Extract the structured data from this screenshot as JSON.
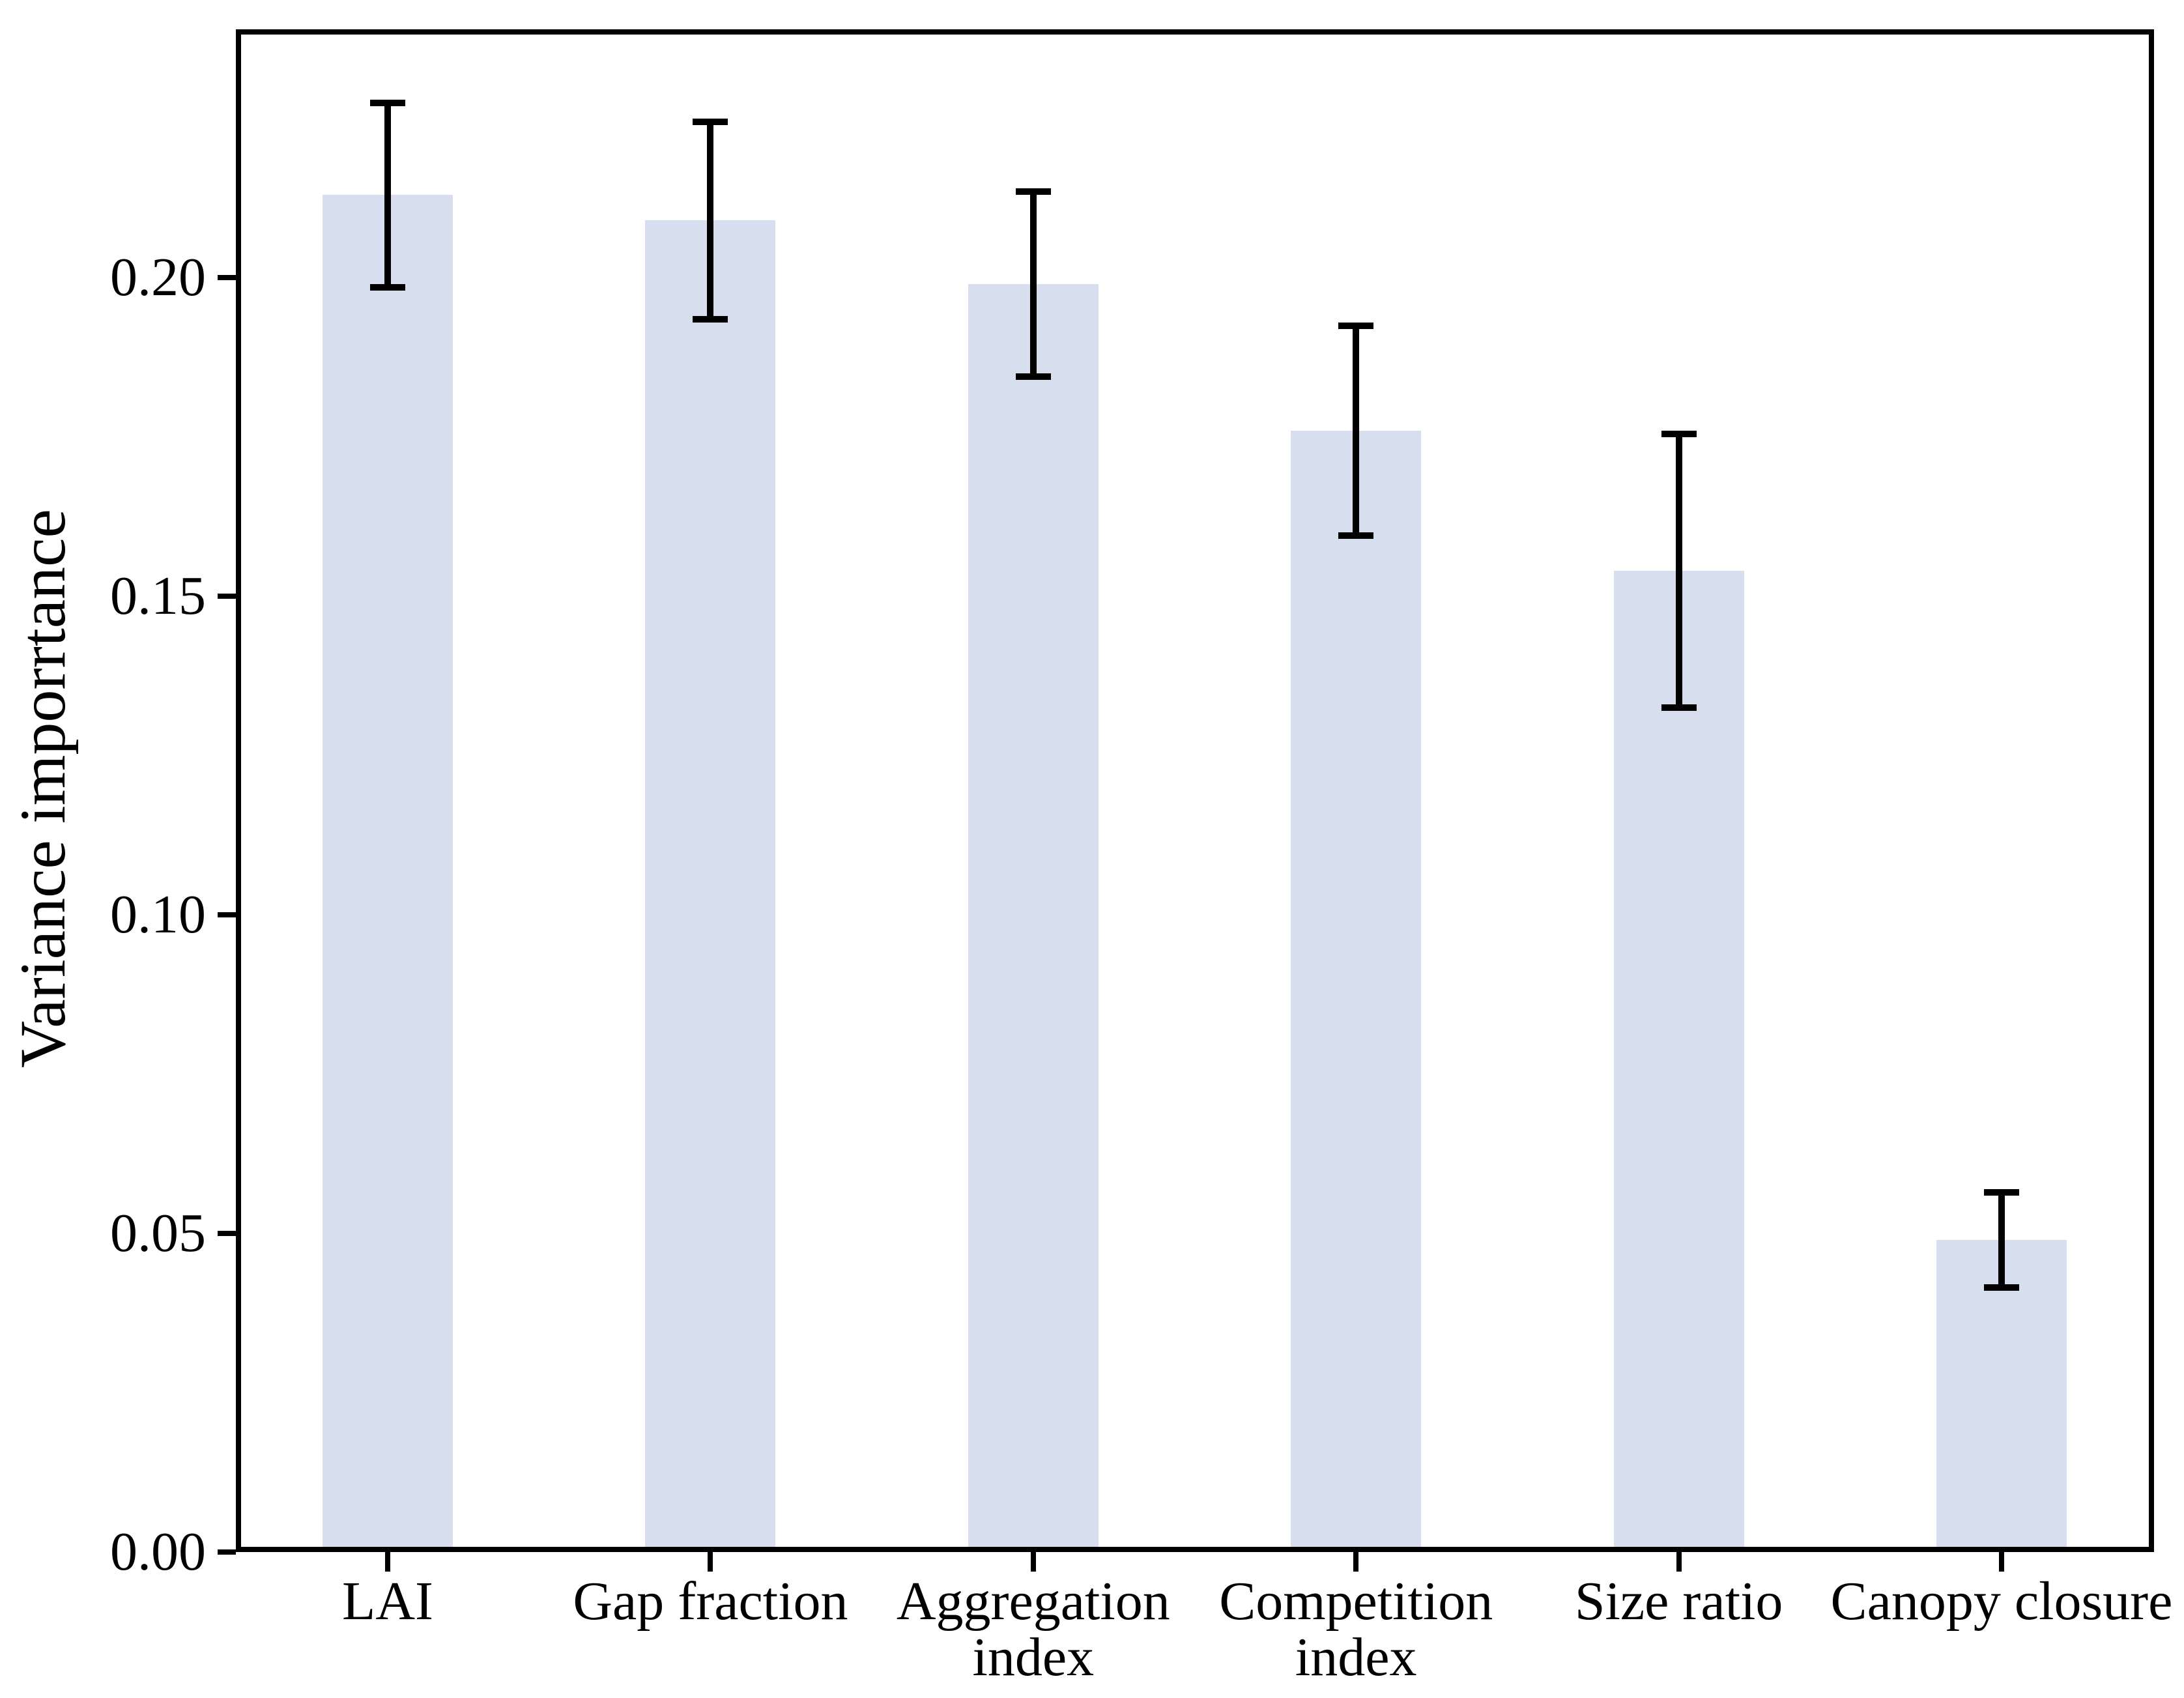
{
  "chart_data": {
    "type": "bar",
    "title": "",
    "xlabel": "",
    "ylabel": "Variance imporrtance",
    "categories": [
      "LAI",
      "Gap fraction",
      "Aggregation\nindex",
      "Competition\nindex",
      "Size ratio",
      "Canopy closure"
    ],
    "values": [
      0.213,
      0.209,
      0.199,
      0.176,
      0.154,
      0.049
    ],
    "error_bars": [
      0.015,
      0.016,
      0.015,
      0.017,
      0.022,
      0.008
    ],
    "series": [
      {
        "name": "Variance importance",
        "values": [
          0.213,
          0.209,
          0.199,
          0.176,
          0.154,
          0.049
        ],
        "errors": [
          0.015,
          0.016,
          0.015,
          0.017,
          0.022,
          0.008
        ]
      }
    ],
    "ytick_values": [
      0.0,
      0.05,
      0.1,
      0.15,
      0.2
    ],
    "ytick_labels": [
      "0.00",
      "0.05",
      "0.10",
      "0.15",
      "0.20"
    ],
    "ylim": [
      0,
      0.239
    ],
    "grid": false,
    "legend": "none",
    "bar_color": "#d7deed",
    "error_color": "#000000",
    "axis_color": "#000000",
    "background_color": "#ffffff"
  }
}
